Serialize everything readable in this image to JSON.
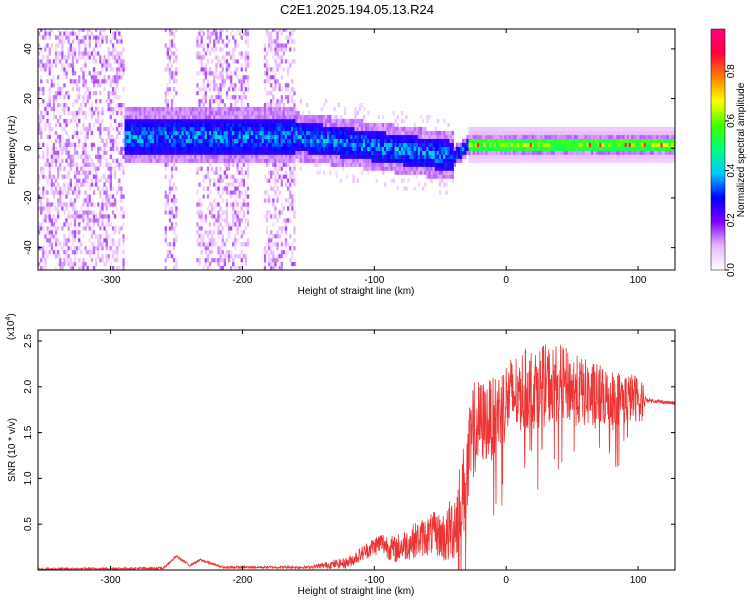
{
  "title": "C2E1.2025.194.05.13.R24",
  "chart_data": [
    {
      "type": "heatmap",
      "xlabel": "Height of straight line (km)",
      "ylabel": "Frequency (Hz)",
      "xlim": [
        -355,
        128
      ],
      "ylim": [
        -49,
        48
      ],
      "x_ticks": [
        -300,
        -200,
        -100,
        0,
        100
      ],
      "y_ticks": [
        -40,
        -20,
        0,
        20,
        40
      ],
      "colorbar": {
        "label": "Normalized spectral amplitude",
        "range": [
          0.0,
          0.97
        ],
        "ticks": [
          0.0,
          0.2,
          0.4,
          0.6,
          0.8
        ],
        "colormap": [
          "#ffffff",
          "#e8b8ff",
          "#8000ff",
          "#0000ff",
          "#00c8ff",
          "#00ff80",
          "#40ff00",
          "#ffff00",
          "#ff8000",
          "#ff0040",
          "#ff0080"
        ]
      },
      "description_points": [
        {
          "x_range": [
            -355,
            -290
          ],
          "band": "diffuse scattered noise across full frequency range"
        },
        {
          "x_range": [
            -290,
            -160
          ],
          "band": "strong band around 0 to 10 Hz with scattered noise"
        },
        {
          "x_range": [
            -160,
            -40
          ],
          "band": "band descending from ~6 Hz to ~-5 Hz"
        },
        {
          "x_range": [
            -40,
            128
          ],
          "band": "narrow strong band near 0 to 2 Hz"
        }
      ]
    },
    {
      "type": "line",
      "xlabel": "Height of straight line (km)",
      "ylabel": "SNR (10 * v/v)",
      "y_multiplier": "(x10",
      "y_multiplier_exp": "4",
      "xlim": [
        -355,
        128
      ],
      "ylim": [
        0,
        2.62
      ],
      "x_ticks": [
        -300,
        -200,
        -100,
        0,
        100
      ],
      "y_ticks": [
        0.5,
        1.0,
        1.5,
        2.0,
        2.5
      ],
      "line_color": "#ee3333",
      "envelope": [
        {
          "x": -355,
          "y": 0.01
        },
        {
          "x": -260,
          "y": 0.02
        },
        {
          "x": -250,
          "y": 0.15
        },
        {
          "x": -240,
          "y": 0.05
        },
        {
          "x": -232,
          "y": 0.11
        },
        {
          "x": -215,
          "y": 0.03
        },
        {
          "x": -150,
          "y": 0.03
        },
        {
          "x": -120,
          "y": 0.08
        },
        {
          "x": -105,
          "y": 0.22
        },
        {
          "x": -95,
          "y": 0.3
        },
        {
          "x": -85,
          "y": 0.22
        },
        {
          "x": -70,
          "y": 0.32
        },
        {
          "x": -55,
          "y": 0.4
        },
        {
          "x": -45,
          "y": 0.35
        },
        {
          "x": -38,
          "y": 0.55
        },
        {
          "x": -30,
          "y": 1.0
        },
        {
          "x": -25,
          "y": 1.55
        },
        {
          "x": -20,
          "y": 1.6
        },
        {
          "x": -10,
          "y": 1.65
        },
        {
          "x": 0,
          "y": 1.85
        },
        {
          "x": 10,
          "y": 1.95
        },
        {
          "x": 25,
          "y": 2.0
        },
        {
          "x": 40,
          "y": 2.05
        },
        {
          "x": 55,
          "y": 1.95
        },
        {
          "x": 70,
          "y": 1.9
        },
        {
          "x": 85,
          "y": 1.88
        },
        {
          "x": 100,
          "y": 1.88
        },
        {
          "x": 105,
          "y": 1.86
        },
        {
          "x": 115,
          "y": 1.84
        },
        {
          "x": 128,
          "y": 1.82
        }
      ],
      "noise_amplitude": [
        {
          "x": -355,
          "a": 0.01
        },
        {
          "x": -150,
          "a": 0.015
        },
        {
          "x": -110,
          "a": 0.08
        },
        {
          "x": -50,
          "a": 0.25
        },
        {
          "x": -30,
          "a": 0.55
        },
        {
          "x": -15,
          "a": 0.45
        },
        {
          "x": 30,
          "a": 0.45
        },
        {
          "x": 70,
          "a": 0.35
        },
        {
          "x": 103,
          "a": 0.25
        },
        {
          "x": 106,
          "a": 0.02
        },
        {
          "x": 128,
          "a": 0.02
        }
      ]
    }
  ]
}
